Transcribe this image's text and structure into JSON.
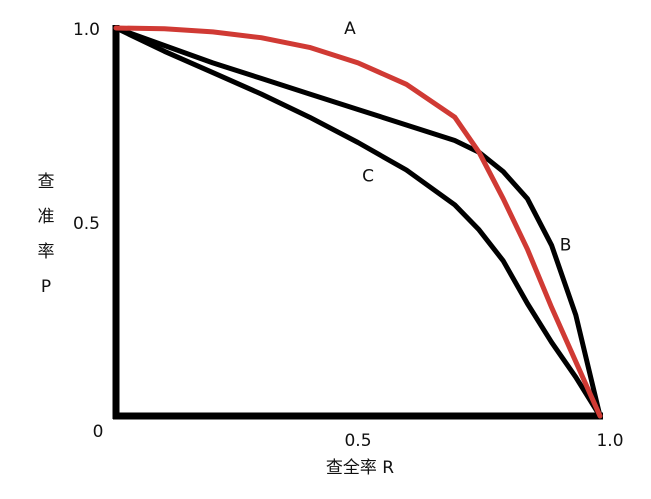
{
  "chart_data": {
    "type": "line",
    "x_label": "查全率 R",
    "y_label": "查准率P",
    "x": [
      0,
      0.1,
      0.2,
      0.3,
      0.4,
      0.5,
      0.6,
      0.7,
      0.75,
      0.8,
      0.85,
      0.9,
      0.95,
      1
    ],
    "series": [
      {
        "name": "A",
        "color": "#d03a34",
        "values": [
          1,
          0.998,
          0.99,
          0.975,
          0.95,
          0.91,
          0.855,
          0.77,
          0.68,
          0.56,
          0.43,
          0.28,
          0.14,
          0
        ]
      },
      {
        "name": "B",
        "color": "#000000",
        "values": [
          1,
          0.955,
          0.91,
          0.87,
          0.83,
          0.79,
          0.75,
          0.71,
          0.68,
          0.63,
          0.56,
          0.44,
          0.26,
          0
        ]
      },
      {
        "name": "C",
        "color": "#000000",
        "values": [
          1,
          0.94,
          0.885,
          0.83,
          0.77,
          0.705,
          0.634,
          0.544,
          0.48,
          0.4,
          0.29,
          0.19,
          0.1,
          0
        ]
      }
    ],
    "xlim": [
      0,
      1
    ],
    "ylim": [
      0,
      1
    ],
    "xticks": [
      0,
      0.5,
      {
        "value": 1,
        "label": "1.0"
      }
    ],
    "yticks": [
      0.5,
      {
        "value": 1,
        "label": "1.0"
      }
    ],
    "grid": false
  }
}
